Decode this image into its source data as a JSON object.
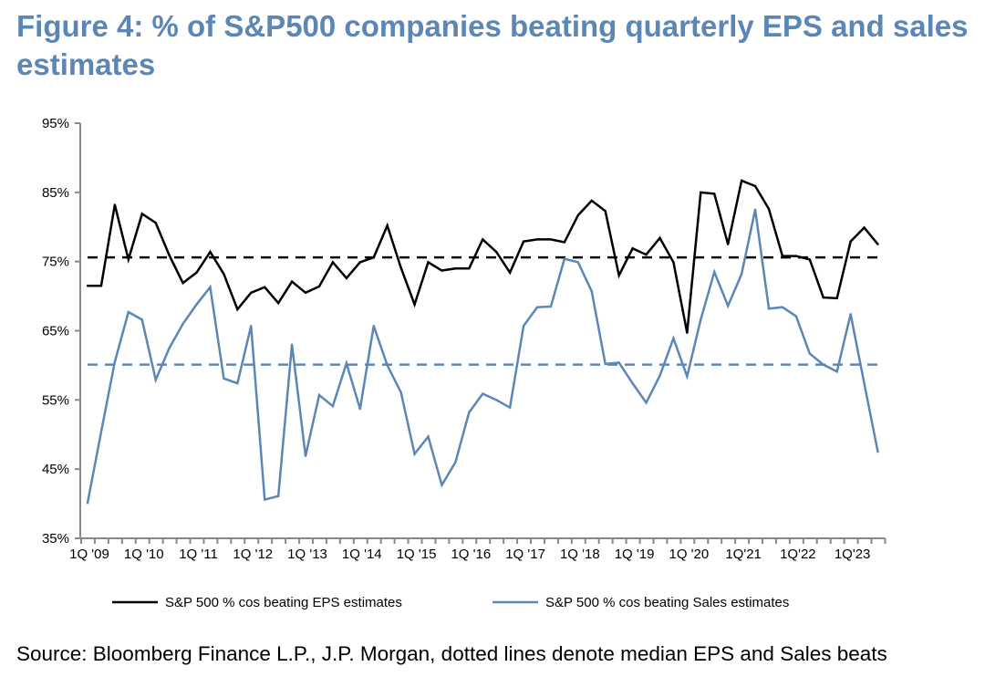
{
  "title": "Figure 4: % of S&P500 companies beating quarterly EPS and sales estimates",
  "source": "Source: Bloomberg Finance L.P., J.P. Morgan, dotted lines denote median EPS and Sales beats",
  "chart_data": {
    "type": "line",
    "title": "Figure 4: % of S&P500 companies beating quarterly EPS and sales estimates",
    "xlabel": "",
    "ylabel": "",
    "ylim": [
      35,
      95
    ],
    "y_ticks": [
      "95%",
      "85%",
      "75%",
      "65%",
      "55%",
      "45%",
      "35%"
    ],
    "y_tick_values": [
      95,
      85,
      75,
      65,
      55,
      45,
      35
    ],
    "x_tick_labels": [
      "1Q '09",
      "1Q '10",
      "1Q '11",
      "1Q '12",
      "1Q '13",
      "1Q '14",
      "1Q '15",
      "1Q '16",
      "1Q '17",
      "1Q '18",
      "1Q '19",
      "1Q '20",
      "1Q'21",
      "1Q'22",
      "1Q'23"
    ],
    "x_tick_every_quarters": 4,
    "x_range": "1Q 2009 - 3Q 2023 (quarterly)",
    "grid": false,
    "legend_position": "bottom",
    "series": [
      {
        "name": "S&P 500 % cos beating EPS estimates",
        "color": "#000000",
        "values": [
          71.5,
          71.5,
          83.2,
          75.3,
          81.9,
          80.6,
          75.9,
          71.9,
          73.4,
          76.4,
          73.2,
          68.1,
          70.5,
          71.3,
          69.0,
          72.1,
          70.5,
          71.4,
          74.9,
          72.6,
          74.9,
          75.6,
          80.2,
          74.1,
          68.8,
          74.9,
          73.7,
          74.0,
          74.0,
          78.2,
          76.4,
          73.4,
          77.9,
          78.2,
          78.2,
          77.8,
          81.7,
          83.8,
          82.3,
          73.0,
          76.9,
          76.0,
          78.4,
          74.9,
          64.7,
          85.0,
          84.8,
          77.5,
          86.7,
          85.9,
          82.6,
          75.8,
          75.8,
          75.3,
          69.8,
          69.7,
          77.9,
          79.9,
          77.5
        ]
      },
      {
        "name": "S&P 500 % cos beating Sales estimates",
        "color": "#5b87b6",
        "values": [
          40.1,
          50.4,
          60.5,
          67.7,
          66.6,
          57.9,
          62.5,
          66.0,
          68.8,
          71.3,
          58.1,
          57.4,
          65.7,
          40.6,
          41.1,
          63.0,
          46.9,
          55.7,
          54.1,
          60.3,
          53.7,
          65.7,
          60.0,
          56.1,
          47.2,
          49.7,
          42.7,
          46.0,
          53.2,
          55.9,
          55.0,
          53.9,
          65.7,
          68.4,
          68.5,
          75.4,
          74.9,
          70.7,
          60.2,
          60.4,
          57.4,
          54.6,
          58.5,
          63.9,
          58.4,
          66.6,
          73.5,
          68.6,
          73.2,
          82.5,
          68.2,
          68.4,
          67.1,
          61.7,
          60.1,
          59.1,
          67.4,
          57.4,
          47.5
        ]
      }
    ],
    "reference_lines": [
      {
        "label": "median EPS beats",
        "value": 75.6,
        "color": "#000000",
        "style": "dashed"
      },
      {
        "label": "median Sales beats",
        "value": 60.1,
        "color": "#5b87b6",
        "style": "dashed"
      }
    ]
  }
}
